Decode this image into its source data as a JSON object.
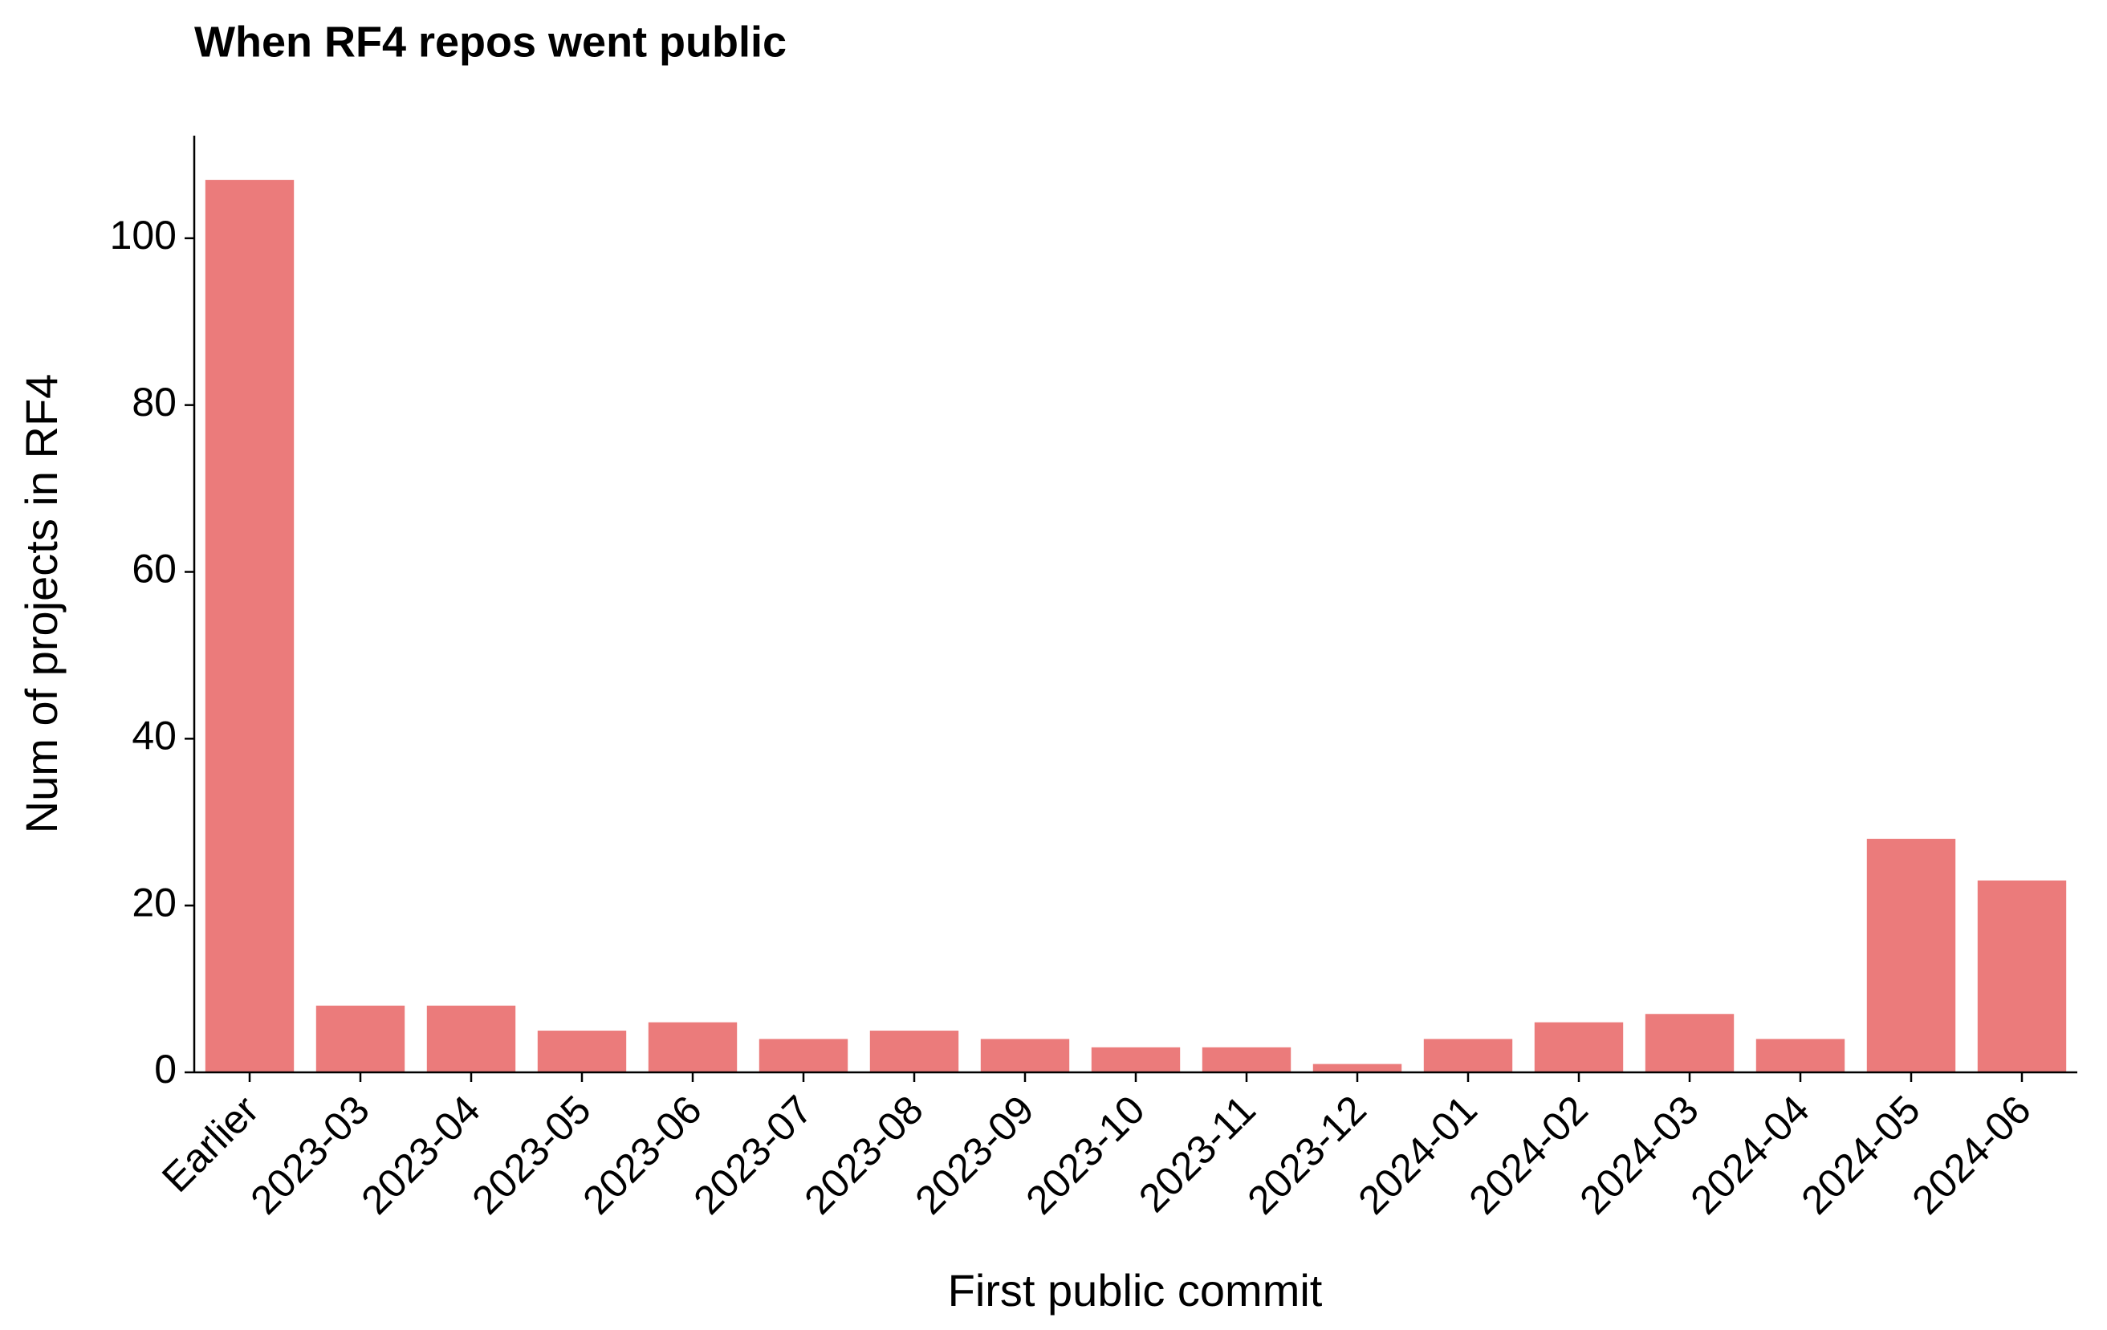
{
  "chart_data": {
    "type": "bar",
    "title": "When RF4 repos went public",
    "x_label": "First public commit",
    "y_label": "Num of projects in RF4",
    "categories": [
      "Earlier",
      "2023-03",
      "2023-04",
      "2023-05",
      "2023-06",
      "2023-07",
      "2023-08",
      "2023-09",
      "2023-10",
      "2023-11",
      "2023-12",
      "2024-01",
      "2024-02",
      "2024-03",
      "2024-04",
      "2024-05",
      "2024-06"
    ],
    "values": [
      107,
      8,
      8,
      5,
      6,
      4,
      5,
      4,
      3,
      3,
      1,
      4,
      6,
      7,
      4,
      28,
      23
    ],
    "color": "#eb7b7b",
    "ylim": [
      0,
      112.3
    ],
    "yticks": [
      0,
      20,
      40,
      60,
      80,
      100
    ],
    "grid": false
  }
}
